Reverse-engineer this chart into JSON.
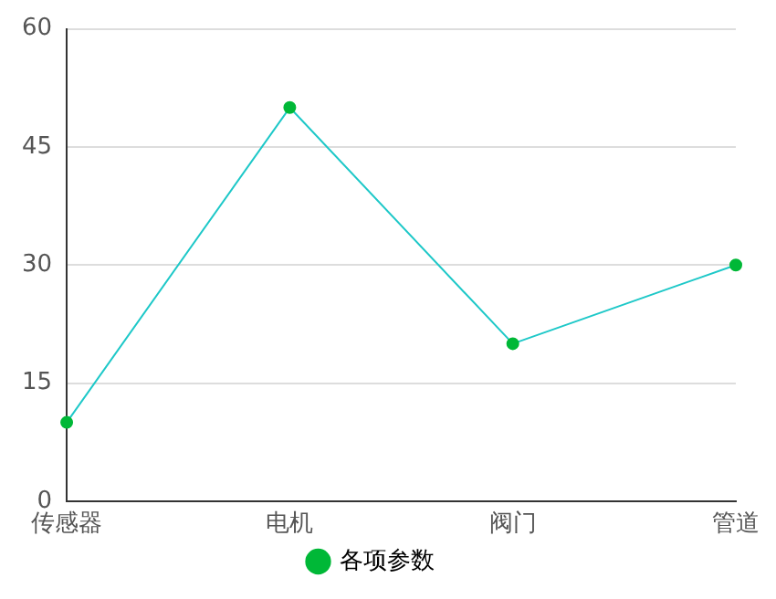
{
  "chart_data": {
    "type": "line",
    "categories": [
      "传感器",
      "电机",
      "阀门",
      "管道"
    ],
    "series": [
      {
        "name": "各项参数",
        "color": "#1ec8c8",
        "colors": [
          "#00b837",
          "#00b837",
          "#00b837",
          "#00b837"
        ],
        "values": [
          10,
          50,
          20,
          30
        ]
      }
    ],
    "ylim": [
      0,
      60
    ],
    "yticks": [
      0,
      15,
      30,
      45,
      60
    ],
    "grid": "y",
    "legend": "bottom",
    "marker": "circle",
    "line_style": "solid"
  }
}
